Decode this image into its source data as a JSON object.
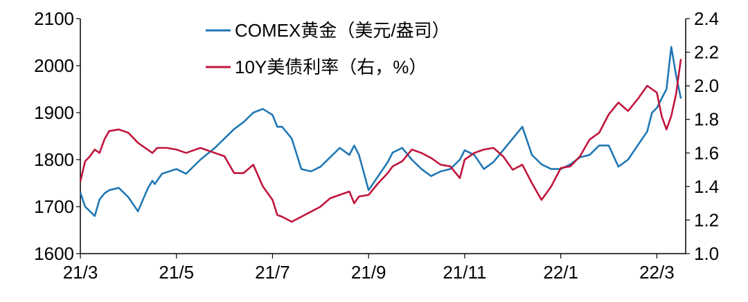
{
  "chart_data": {
    "type": "line",
    "x_ticks": [
      "21/3",
      "21/5",
      "21/7",
      "21/9",
      "21/11",
      "22/1",
      "22/3"
    ],
    "y_left": {
      "ticks": [
        1600,
        1700,
        1800,
        1900,
        2000,
        2100
      ],
      "range": [
        1600,
        2100
      ]
    },
    "y_right": {
      "ticks": [
        "1.0",
        "1.2",
        "1.4",
        "1.6",
        "1.8",
        "2.0",
        "2.2",
        "2.4"
      ],
      "range": [
        1.0,
        2.4
      ]
    },
    "x_range": [
      0,
      12.6
    ],
    "grid": false,
    "legend_position": "top-center",
    "series": [
      {
        "name": "COMEX黄金（美元/盎司）",
        "axis": "left",
        "color": "#1f77b4",
        "x": [
          0.0,
          0.1,
          0.2,
          0.3,
          0.4,
          0.5,
          0.6,
          0.8,
          1.0,
          1.2,
          1.4,
          1.5,
          1.55,
          1.7,
          2.0,
          2.2,
          2.5,
          2.8,
          3.0,
          3.2,
          3.4,
          3.6,
          3.8,
          4.0,
          4.1,
          4.2,
          4.4,
          4.6,
          4.8,
          5.0,
          5.2,
          5.4,
          5.6,
          5.7,
          5.8,
          6.0,
          6.2,
          6.4,
          6.5,
          6.7,
          6.9,
          7.1,
          7.3,
          7.5,
          7.7,
          7.9,
          8.0,
          8.2,
          8.4,
          8.6,
          8.8,
          9.0,
          9.2,
          9.4,
          9.6,
          9.8,
          10.0,
          10.2,
          10.4,
          10.6,
          10.8,
          11.0,
          11.2,
          11.4,
          11.6,
          11.8,
          11.9,
          12.0,
          12.1,
          12.2,
          12.3,
          12.4,
          12.5
        ],
        "y": [
          1730,
          1700,
          1690,
          1680,
          1715,
          1728,
          1735,
          1740,
          1720,
          1690,
          1738,
          1755,
          1748,
          1770,
          1780,
          1770,
          1800,
          1825,
          1845,
          1865,
          1880,
          1900,
          1908,
          1895,
          1870,
          1870,
          1845,
          1780,
          1775,
          1785,
          1805,
          1825,
          1810,
          1830,
          1810,
          1735,
          1765,
          1795,
          1815,
          1825,
          1800,
          1780,
          1765,
          1775,
          1780,
          1800,
          1820,
          1810,
          1780,
          1795,
          1820,
          1845,
          1870,
          1810,
          1790,
          1780,
          1780,
          1790,
          1805,
          1810,
          1830,
          1830,
          1785,
          1800,
          1830,
          1860,
          1900,
          1910,
          1930,
          1950,
          2040,
          1980,
          1930
        ]
      },
      {
        "name": "10Y美债利率（右，%）",
        "axis": "right",
        "color": "#c0143c",
        "x": [
          0.0,
          0.1,
          0.2,
          0.3,
          0.4,
          0.5,
          0.6,
          0.8,
          1.0,
          1.2,
          1.4,
          1.5,
          1.6,
          1.8,
          2.0,
          2.2,
          2.5,
          2.8,
          3.0,
          3.2,
          3.4,
          3.6,
          3.8,
          4.0,
          4.1,
          4.2,
          4.4,
          4.6,
          4.8,
          5.0,
          5.2,
          5.4,
          5.6,
          5.7,
          5.8,
          6.0,
          6.2,
          6.4,
          6.5,
          6.7,
          6.9,
          7.1,
          7.3,
          7.5,
          7.7,
          7.9,
          8.0,
          8.2,
          8.4,
          8.6,
          8.8,
          9.0,
          9.2,
          9.4,
          9.6,
          9.8,
          10.0,
          10.2,
          10.4,
          10.6,
          10.8,
          11.0,
          11.2,
          11.4,
          11.6,
          11.8,
          11.9,
          12.0,
          12.1,
          12.2,
          12.3,
          12.4,
          12.5
        ],
        "y": [
          1.43,
          1.55,
          1.58,
          1.62,
          1.6,
          1.68,
          1.73,
          1.74,
          1.72,
          1.66,
          1.62,
          1.6,
          1.63,
          1.63,
          1.62,
          1.6,
          1.63,
          1.6,
          1.58,
          1.48,
          1.48,
          1.53,
          1.4,
          1.32,
          1.23,
          1.22,
          1.19,
          1.22,
          1.25,
          1.28,
          1.33,
          1.35,
          1.37,
          1.3,
          1.34,
          1.35,
          1.42,
          1.48,
          1.52,
          1.55,
          1.62,
          1.6,
          1.57,
          1.53,
          1.52,
          1.45,
          1.56,
          1.6,
          1.62,
          1.63,
          1.58,
          1.5,
          1.53,
          1.42,
          1.32,
          1.4,
          1.51,
          1.52,
          1.58,
          1.68,
          1.72,
          1.83,
          1.9,
          1.85,
          1.92,
          2.0,
          1.98,
          1.96,
          1.82,
          1.74,
          1.82,
          1.95,
          2.16
        ]
      }
    ]
  }
}
